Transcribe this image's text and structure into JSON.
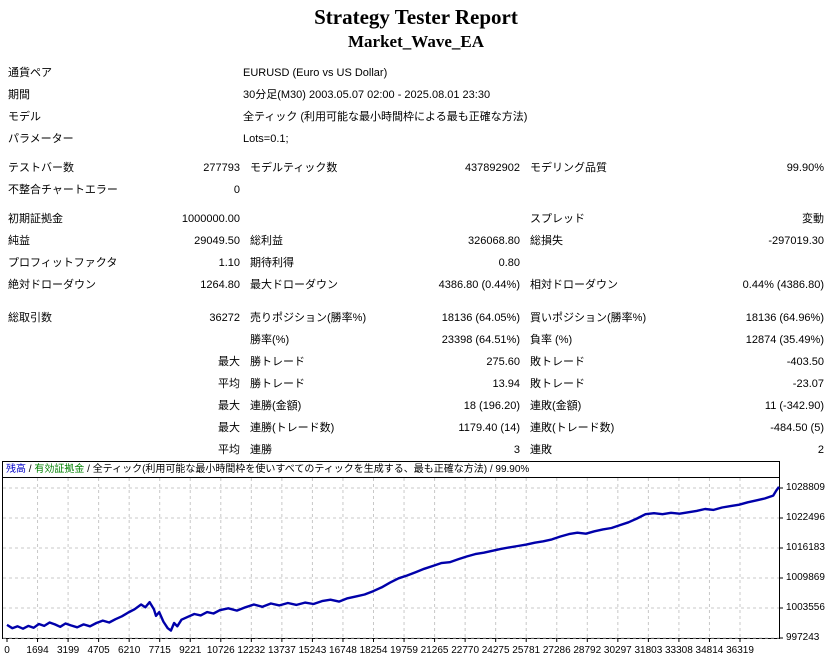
{
  "title": "Strategy Tester Report",
  "subtitle": "Market_Wave_EA",
  "info_rows": [
    {
      "label": "通貨ペア",
      "value": "EURUSD (Euro vs US Dollar)"
    },
    {
      "label": "期間",
      "value": "30分足(M30) 2003.05.07 02:00 - 2025.08.01 23:30"
    },
    {
      "label": "モデル",
      "value": "全ティック (利用可能な最小時間枠による最も正確な方法)"
    },
    {
      "label": "パラメーター",
      "value": "Lots=0.1;"
    }
  ],
  "stats_rows": [
    {
      "g": 1,
      "l1": "テストバー数",
      "v1": "277793",
      "l2": "モデルティック数",
      "v2": "437892902",
      "l3": "モデリング品質",
      "v3": "99.90%"
    },
    {
      "g": 1,
      "l1": "不整合チャートエラー",
      "v1": "0",
      "l2": "",
      "v2": "",
      "l3": "",
      "v3": ""
    },
    {
      "g": 2,
      "l1": "初期証拠金",
      "v1": "1000000.00",
      "l2": "",
      "v2": "",
      "l3": "スプレッド",
      "v3": "変動"
    },
    {
      "g": 2,
      "l1": "純益",
      "v1": "29049.50",
      "l2": "総利益",
      "v2": "326068.80",
      "l3": "総損失",
      "v3": "-297019.30"
    },
    {
      "g": 2,
      "l1": "プロフィットファクタ",
      "v1": "1.10",
      "l2": "期待利得",
      "v2": "0.80",
      "l3": "",
      "v3": ""
    },
    {
      "g": 2,
      "l1": "絶対ドローダウン",
      "v1": "1264.80",
      "l2": "最大ドローダウン",
      "v2": "4386.80 (0.44%)",
      "l3": "相対ドローダウン",
      "v3": "0.44% (4386.80)"
    },
    {
      "g": 3,
      "l1": "総取引数",
      "v1": "36272",
      "l2": "売りポジション(勝率%)",
      "v2": "18136 (64.05%)",
      "l3": "買いポジション(勝率%)",
      "v3": "18136 (64.96%)"
    },
    {
      "g": 3,
      "l1": "",
      "v1": "",
      "l2": "勝率(%)",
      "v2": "23398 (64.51%)",
      "l3": "負率 (%)",
      "v3": "12874 (35.49%)"
    },
    {
      "g": 3,
      "l1": "",
      "v1": "最大",
      "l2": "勝トレード",
      "v2": "275.60",
      "l3": "敗トレード",
      "v3": "-403.50"
    },
    {
      "g": 3,
      "l1": "",
      "v1": "平均",
      "l2": "勝トレード",
      "v2": "13.94",
      "l3": "敗トレード",
      "v3": "-23.07"
    },
    {
      "g": 3,
      "l1": "",
      "v1": "最大",
      "l2": "連勝(金額)",
      "v2": "18 (196.20)",
      "l3": "連敗(金額)",
      "v3": "11 (-342.90)"
    },
    {
      "g": 3,
      "l1": "",
      "v1": "最大",
      "l2": "連勝(トレード数)",
      "v2": "1179.40 (14)",
      "l3": "連敗(トレード数)",
      "v3": "-484.50 (5)"
    },
    {
      "g": 3,
      "l1": "",
      "v1": "平均",
      "l2": "連勝",
      "v2": "3",
      "l3": "連敗",
      "v3": "2"
    }
  ],
  "chart": {
    "legend": {
      "balance": "残高",
      "sep": " / ",
      "equity": "有効証拠金",
      "model": "全ティック(利用可能な最小時間枠を使いすべてのティックを生成する、最も正確な方法)",
      "quality": "99.90%"
    },
    "colors": {
      "balance": "#0000C8",
      "equity": "#008000",
      "line": "#0000AA",
      "grid": "#C8C8C8",
      "border": "#000000"
    }
  },
  "chart_data": {
    "type": "line",
    "title": "残高 / 有効証拠金 / 全ティック(利用可能な最小時間枠を使いすべてのティックを生成する、最も正確な方法) / 99.90%",
    "legend_position": "top-left",
    "grid": "dashed",
    "x_ticks": [
      0,
      1694,
      3199,
      4705,
      6210,
      7715,
      9221,
      10726,
      12232,
      13737,
      15243,
      16748,
      18254,
      19759,
      21265,
      22770,
      24275,
      25781,
      27286,
      28792,
      30297,
      31803,
      33308,
      34814,
      36319
    ],
    "y_ticks": [
      1028809,
      1022496,
      1016183,
      1009869,
      1003556,
      997243
    ],
    "xlim": [
      0,
      36319
    ],
    "ylim": [
      997243,
      1030913
    ],
    "series": [
      {
        "name": "残高",
        "color": "#0000AA",
        "points": [
          [
            0,
            1000000
          ],
          [
            250,
            999300
          ],
          [
            500,
            999700
          ],
          [
            750,
            999200
          ],
          [
            1000,
            999800
          ],
          [
            1250,
            999400
          ],
          [
            1500,
            1000200
          ],
          [
            1750,
            999800
          ],
          [
            2000,
            1000500
          ],
          [
            2250,
            1000100
          ],
          [
            2500,
            999600
          ],
          [
            2750,
            1000300
          ],
          [
            3000,
            999900
          ],
          [
            3300,
            999500
          ],
          [
            3600,
            1000100
          ],
          [
            3900,
            999700
          ],
          [
            4200,
            1000400
          ],
          [
            4500,
            1000900
          ],
          [
            4800,
            1000500
          ],
          [
            5100,
            1001200
          ],
          [
            5400,
            1001800
          ],
          [
            5700,
            1002600
          ],
          [
            6000,
            1003300
          ],
          [
            6300,
            1004300
          ],
          [
            6500,
            1003700
          ],
          [
            6700,
            1004800
          ],
          [
            6900,
            1003300
          ],
          [
            7000,
            1001900
          ],
          [
            7150,
            1002700
          ],
          [
            7350,
            1000700
          ],
          [
            7550,
            999300
          ],
          [
            7700,
            998800
          ],
          [
            7850,
            1000400
          ],
          [
            8000,
            999700
          ],
          [
            8200,
            1001100
          ],
          [
            8500,
            1001700
          ],
          [
            8800,
            1002300
          ],
          [
            9100,
            1002000
          ],
          [
            9400,
            1002700
          ],
          [
            9700,
            1002400
          ],
          [
            10000,
            1003100
          ],
          [
            10400,
            1003500
          ],
          [
            10800,
            1003000
          ],
          [
            11200,
            1003700
          ],
          [
            11600,
            1004300
          ],
          [
            12000,
            1003800
          ],
          [
            12400,
            1004500
          ],
          [
            12800,
            1004100
          ],
          [
            13200,
            1004600
          ],
          [
            13600,
            1004200
          ],
          [
            14000,
            1004700
          ],
          [
            14400,
            1004400
          ],
          [
            14800,
            1005000
          ],
          [
            15200,
            1005300
          ],
          [
            15600,
            1004900
          ],
          [
            16000,
            1005600
          ],
          [
            16400,
            1006000
          ],
          [
            16800,
            1006400
          ],
          [
            17200,
            1007100
          ],
          [
            17600,
            1007900
          ],
          [
            18000,
            1008900
          ],
          [
            18400,
            1009800
          ],
          [
            18800,
            1010400
          ],
          [
            19200,
            1011100
          ],
          [
            19600,
            1011800
          ],
          [
            20000,
            1012400
          ],
          [
            20400,
            1013000
          ],
          [
            20800,
            1013200
          ],
          [
            21200,
            1013800
          ],
          [
            21600,
            1014400
          ],
          [
            22000,
            1014900
          ],
          [
            22400,
            1015200
          ],
          [
            22800,
            1015600
          ],
          [
            23200,
            1016000
          ],
          [
            23600,
            1016300
          ],
          [
            24000,
            1016600
          ],
          [
            24400,
            1016900
          ],
          [
            24800,
            1017300
          ],
          [
            25200,
            1017600
          ],
          [
            25600,
            1018000
          ],
          [
            26000,
            1018600
          ],
          [
            26400,
            1019100
          ],
          [
            26800,
            1019400
          ],
          [
            27200,
            1019200
          ],
          [
            27600,
            1019700
          ],
          [
            28000,
            1020100
          ],
          [
            28400,
            1020400
          ],
          [
            28800,
            1021000
          ],
          [
            29200,
            1021600
          ],
          [
            29600,
            1022400
          ],
          [
            30000,
            1023300
          ],
          [
            30400,
            1023500
          ],
          [
            30800,
            1023300
          ],
          [
            31200,
            1023600
          ],
          [
            31600,
            1023400
          ],
          [
            32000,
            1023700
          ],
          [
            32400,
            1024000
          ],
          [
            32800,
            1024400
          ],
          [
            33200,
            1024200
          ],
          [
            33600,
            1024700
          ],
          [
            34000,
            1025000
          ],
          [
            34400,
            1025300
          ],
          [
            34800,
            1025800
          ],
          [
            35200,
            1026200
          ],
          [
            35600,
            1026600
          ],
          [
            36000,
            1027200
          ],
          [
            36150,
            1028300
          ],
          [
            36272,
            1029049
          ]
        ]
      }
    ]
  }
}
